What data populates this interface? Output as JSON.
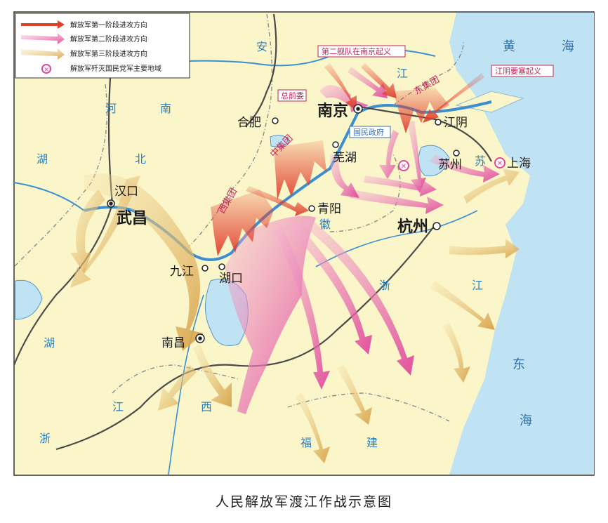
{
  "legend": {
    "items": [
      {
        "label": "解放军第一阶段进攻方向",
        "color": "#e0412f"
      },
      {
        "label": "解放军第二阶段进攻方向",
        "color": "#e0479a"
      },
      {
        "label": "解放军第三阶段进攻方向",
        "color": "#d7a248"
      },
      {
        "label": "解放军歼灭国民党军主要地域",
        "color": "#e0479a"
      }
    ]
  },
  "cities": {
    "nanjing": "南京",
    "hefei": "合肥",
    "wuhu": "芜湖",
    "jiangyin": "江阴",
    "suzhou": "苏州",
    "shanghai": "上海",
    "hankou": "汉口",
    "wuchang": "武昌",
    "qingyang": "青阳",
    "hangzhou": "杭州",
    "jiujiang": "九江",
    "hukou": "湖口",
    "nanchang": "南昌"
  },
  "provinces": {
    "an": "安",
    "hui": "徽",
    "he": "河",
    "nan": "南",
    "hu_b": "湖",
    "bei": "北",
    "zhe": "浙",
    "jiang_z": "江",
    "hu_n": "湖",
    "jiang_x": "江",
    "xi": "西",
    "fu": "福",
    "jian": "建",
    "zhe2": "浙",
    "jiang_s": "江",
    "su": "苏"
  },
  "seas": {
    "huang": "黄",
    "hai1": "海",
    "dong": "东",
    "hai2": "海"
  },
  "groups": {
    "east": "东集团",
    "middle": "中集团",
    "west": "西集团"
  },
  "callouts": {
    "zhenjiang": "第二舰队在南京起义",
    "jiangyin_fort": "江阴要塞起义",
    "nj_liberated": "国民政府",
    "hefei_box": "总前委"
  },
  "colors": {
    "land": "#fbf6c9",
    "water": "#bfe3f2",
    "border": "#8a8a8a",
    "wave1": "#e0412f",
    "wave2": "#e0479a",
    "wave3": "#d7a248"
  },
  "caption": "人民解放军渡江作战示意图"
}
